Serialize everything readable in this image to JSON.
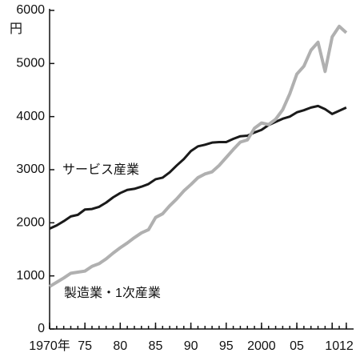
{
  "chart_data": {
    "type": "line",
    "y_unit": "円",
    "x": [
      1970,
      1971,
      1972,
      1973,
      1974,
      1975,
      1976,
      1977,
      1978,
      1979,
      1980,
      1981,
      1982,
      1983,
      1984,
      1985,
      1986,
      1987,
      1988,
      1989,
      1990,
      1991,
      1992,
      1993,
      1994,
      1995,
      1996,
      1997,
      1998,
      1999,
      2000,
      2001,
      2002,
      2003,
      2004,
      2005,
      2006,
      2007,
      2008,
      2009,
      2010,
      2011,
      2012
    ],
    "series": [
      {
        "name": "サービス産業",
        "color": "#1a1a1a",
        "values": [
          1890,
          1950,
          2030,
          2120,
          2150,
          2250,
          2260,
          2300,
          2380,
          2480,
          2560,
          2620,
          2640,
          2680,
          2730,
          2820,
          2850,
          2950,
          3080,
          3200,
          3350,
          3440,
          3470,
          3510,
          3520,
          3520,
          3580,
          3630,
          3640,
          3700,
          3750,
          3840,
          3900,
          3960,
          4000,
          4080,
          4120,
          4170,
          4200,
          4140,
          4050,
          4110,
          4170
        ]
      },
      {
        "name": "製造業・1次産業",
        "color": "#b0b0b0",
        "values": [
          800,
          880,
          960,
          1050,
          1070,
          1090,
          1180,
          1230,
          1320,
          1430,
          1530,
          1620,
          1720,
          1810,
          1870,
          2100,
          2170,
          2320,
          2450,
          2600,
          2720,
          2850,
          2920,
          2960,
          3080,
          3230,
          3380,
          3520,
          3560,
          3780,
          3880,
          3850,
          3950,
          4130,
          4430,
          4800,
          4950,
          5250,
          5400,
          4850,
          5500,
          5700,
          5580
        ]
      }
    ],
    "xlim": [
      1969,
      2013
    ],
    "xticks": [
      {
        "value": 1970,
        "label": "1970年"
      },
      {
        "value": 1975,
        "label": "75"
      },
      {
        "value": 1980,
        "label": "80"
      },
      {
        "value": 1985,
        "label": "85"
      },
      {
        "value": 1990,
        "label": "90"
      },
      {
        "value": 1995,
        "label": "95"
      },
      2000,
      {
        "value": 2005,
        "label": "05"
      },
      {
        "value": 2010,
        "label": "10"
      },
      {
        "value": 2012,
        "label": "12"
      }
    ],
    "ylim": [
      0,
      6000
    ],
    "yticks": [
      0,
      1000,
      2000,
      3000,
      4000,
      5000,
      6000
    ],
    "grid": false
  }
}
